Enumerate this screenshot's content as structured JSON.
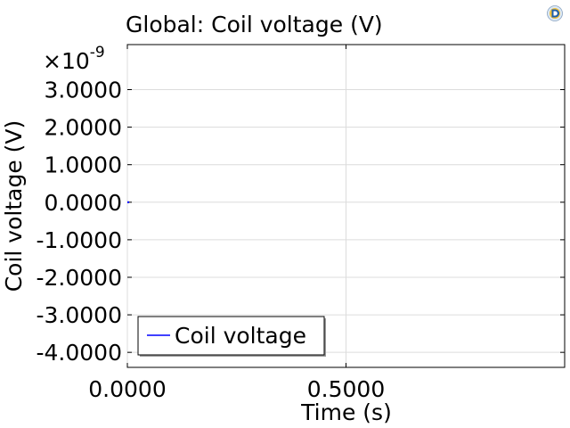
{
  "chart_data": {
    "type": "line",
    "title": "Global: Coil voltage (V)",
    "xlabel": "Time (s)",
    "ylabel": "Coil voltage (V)",
    "xlim": [
      0,
      1
    ],
    "ylim": [
      -4.4e-09,
      4.2e-09
    ],
    "x_ticks": [
      0,
      0.5
    ],
    "x_tick_labels": [
      "0.0000",
      "0.5000"
    ],
    "y_ticks": [
      3e-09,
      2e-09,
      1e-09,
      0,
      -1e-09,
      -2e-09,
      -3e-09,
      -4e-09
    ],
    "y_tick_labels": [
      "3.0000",
      "2.0000",
      "1.0000",
      "0.0000",
      "-1.0000",
      "-2.0000",
      "-3.0000",
      "-4.0000"
    ],
    "y_scale_base": "×10",
    "y_scale_exponent": "-9",
    "grid": true,
    "legend_position": "bottom-left",
    "series": [
      {
        "name": "Coil voltage",
        "color": "#0000ff",
        "x": [
          0,
          0.004
        ],
        "y": [
          0,
          0
        ]
      }
    ]
  },
  "app_icon": "comsol-app-icon"
}
